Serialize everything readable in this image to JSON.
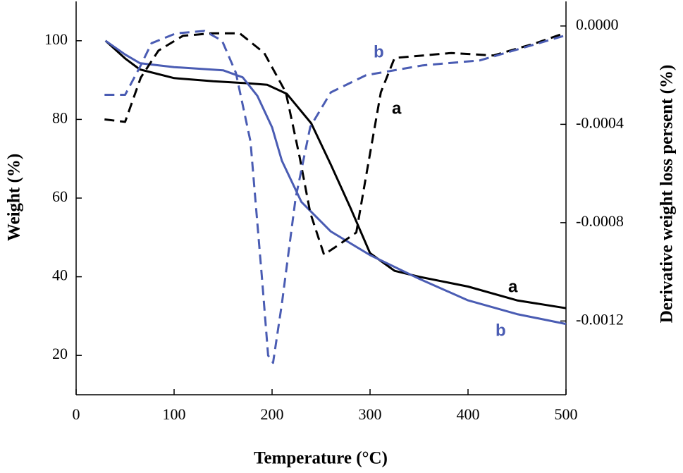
{
  "chart_data": {
    "type": "line",
    "x_label": "Temperature (°C)",
    "y_label": "Weight (%)",
    "y2_label": "Derivative weight loss persent (%)",
    "xlim": [
      0,
      500
    ],
    "xticks": [
      0,
      100,
      200,
      300,
      400,
      500
    ],
    "ylim": [
      10,
      110
    ],
    "yticks": [
      20,
      40,
      60,
      80,
      100
    ],
    "y2lim": [
      -0.0015,
      0.0001
    ],
    "y2ticks": [
      {
        "value": 0,
        "label": "0.0000"
      },
      -0.0004,
      -0.0008,
      -0.0012
    ],
    "grid": false,
    "series": [
      {
        "name": "a",
        "color": "#000000",
        "line_style": "solid",
        "x": [
          30,
          50,
          65,
          100,
          140,
          175,
          195,
          215,
          240,
          260,
          280,
          300,
          325,
          350,
          400,
          450,
          500
        ],
        "values": [
          100,
          95.5,
          92.7,
          90.5,
          89.7,
          89.2,
          88.8,
          86.5,
          79,
          68.5,
          57.5,
          46,
          41.5,
          40,
          37.5,
          34,
          32
        ]
      },
      {
        "name": "b",
        "color": "#4a5cb3",
        "line_style": "solid",
        "x": [
          30,
          50,
          65,
          100,
          150,
          170,
          185,
          200,
          210,
          230,
          260,
          300,
          350,
          400,
          450,
          500
        ],
        "values": [
          100,
          96.5,
          94.3,
          93.3,
          92.5,
          90.7,
          86,
          78,
          69.5,
          59,
          51.5,
          45.5,
          39.5,
          34,
          30.5,
          28
        ]
      },
      {
        "name": "a",
        "color": "#000000",
        "line_style": "dashed",
        "axis": "y2",
        "x": [
          29,
          50,
          66,
          84,
          109,
          138,
          167,
          192,
          214,
          228,
          239,
          253,
          268,
          286,
          296,
          311,
          325,
          354,
          383,
          426,
          469,
          498
        ],
        "values": [
          -0.00038,
          -0.00039,
          -0.00021,
          -0.0001,
          -4e-05,
          -3e-05,
          -3e-05,
          -0.00011,
          -0.00027,
          -0.00053,
          -0.00076,
          -0.00093,
          -0.00089,
          -0.00084,
          -0.00061,
          -0.00027,
          -0.00013,
          -0.00012,
          -0.00011,
          -0.00012,
          -7e-05,
          -3e-05
        ]
      },
      {
        "name": "b",
        "color": "#4a5cb3",
        "line_style": "dashed",
        "axis": "y2",
        "x": [
          29,
          50,
          66,
          77,
          102,
          131,
          149,
          163,
          178,
          190,
          196,
          201,
          210,
          224,
          239,
          260,
          296,
          354,
          412,
          455,
          498
        ],
        "values": [
          -0.00028,
          -0.00028,
          -0.00016,
          -7e-05,
          -3e-05,
          -2e-05,
          -6e-05,
          -0.00019,
          -0.00047,
          -0.00104,
          -0.00134,
          -0.00137,
          -0.00113,
          -0.0007,
          -0.00041,
          -0.00027,
          -0.0002,
          -0.00016,
          -0.00014,
          -9e-05,
          -4e-05
        ]
      }
    ]
  }
}
